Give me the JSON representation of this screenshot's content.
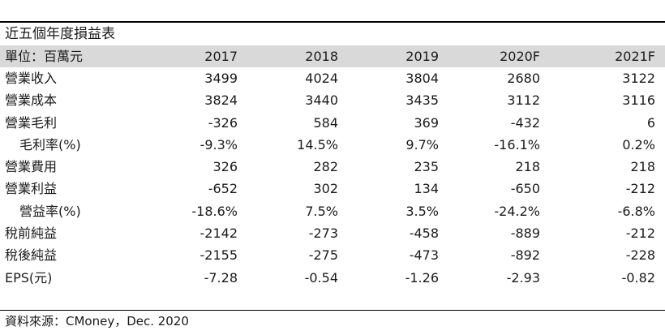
{
  "table": {
    "title": "近五個年度損益表",
    "unit_label": "單位：百萬元",
    "years": [
      "2017",
      "2018",
      "2019",
      "2020F",
      "2021F"
    ],
    "rows": [
      {
        "label": "營業收入",
        "indent": false,
        "values": [
          "3499",
          "4024",
          "3804",
          "2680",
          "3122"
        ]
      },
      {
        "label": "營業成本",
        "indent": false,
        "values": [
          "3824",
          "3440",
          "3435",
          "3112",
          "3116"
        ]
      },
      {
        "label": "營業毛利",
        "indent": false,
        "values": [
          "-326",
          "584",
          "369",
          "-432",
          "6"
        ]
      },
      {
        "label": "毛利率(%)",
        "indent": true,
        "values": [
          "-9.3%",
          "14.5%",
          "9.7%",
          "-16.1%",
          "0.2%"
        ]
      },
      {
        "label": "營業費用",
        "indent": false,
        "values": [
          "326",
          "282",
          "235",
          "218",
          "218"
        ]
      },
      {
        "label": "營業利益",
        "indent": false,
        "values": [
          "-652",
          "302",
          "134",
          "-650",
          "-212"
        ]
      },
      {
        "label": "營益率(%)",
        "indent": true,
        "values": [
          "-18.6%",
          "7.5%",
          "3.5%",
          "-24.2%",
          "-6.8%"
        ]
      },
      {
        "label": "稅前純益",
        "indent": false,
        "values": [
          "-2142",
          "-273",
          "-458",
          "-889",
          "-212"
        ]
      },
      {
        "label": "稅後純益",
        "indent": false,
        "values": [
          "-2155",
          "-275",
          "-473",
          "-892",
          "-228"
        ]
      },
      {
        "label": "EPS(元)",
        "indent": false,
        "values": [
          "-7.28",
          "-0.54",
          "-1.26",
          "-2.93",
          "-0.82"
        ]
      }
    ],
    "source": "資料來源：CMoney，Dec. 2020",
    "header_bg_color": "#d9d9d9"
  }
}
